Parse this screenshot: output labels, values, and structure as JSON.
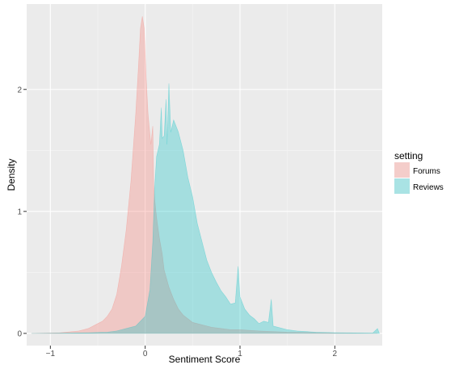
{
  "chart_data": {
    "type": "area",
    "xlabel": "Sentiment Score",
    "ylabel": "Density",
    "xlim": [
      -1.25,
      2.5
    ],
    "ylim": [
      -0.1,
      2.7
    ],
    "x_ticks": [
      -1,
      0,
      1,
      2
    ],
    "y_ticks": [
      0,
      1,
      2
    ],
    "grid": true,
    "legend": {
      "title": "setting",
      "position": "right"
    },
    "series": [
      {
        "name": "Forums",
        "color": "#F8766D",
        "fill_opacity": 0.3,
        "points": [
          [
            -1.2,
            0.0
          ],
          [
            -0.9,
            0.005
          ],
          [
            -0.7,
            0.02
          ],
          [
            -0.6,
            0.04
          ],
          [
            -0.5,
            0.08
          ],
          [
            -0.45,
            0.1
          ],
          [
            -0.4,
            0.14
          ],
          [
            -0.35,
            0.2
          ],
          [
            -0.3,
            0.32
          ],
          [
            -0.25,
            0.55
          ],
          [
            -0.2,
            0.85
          ],
          [
            -0.15,
            1.25
          ],
          [
            -0.1,
            1.8
          ],
          [
            -0.07,
            2.2
          ],
          [
            -0.05,
            2.5
          ],
          [
            -0.03,
            2.6
          ],
          [
            -0.01,
            2.5
          ],
          [
            0.01,
            2.1
          ],
          [
            0.03,
            1.8
          ],
          [
            0.06,
            1.55
          ],
          [
            0.08,
            1.7
          ],
          [
            0.09,
            1.22
          ],
          [
            0.1,
            1.1
          ],
          [
            0.12,
            0.95
          ],
          [
            0.15,
            0.78
          ],
          [
            0.18,
            0.65
          ],
          [
            0.2,
            0.52
          ],
          [
            0.25,
            0.38
          ],
          [
            0.3,
            0.28
          ],
          [
            0.35,
            0.2
          ],
          [
            0.4,
            0.15
          ],
          [
            0.45,
            0.12
          ],
          [
            0.5,
            0.09
          ],
          [
            0.6,
            0.07
          ],
          [
            0.7,
            0.05
          ],
          [
            0.8,
            0.04
          ],
          [
            0.9,
            0.03
          ],
          [
            1.0,
            0.03
          ],
          [
            1.2,
            0.02
          ],
          [
            1.5,
            0.01
          ],
          [
            2.0,
            0.003
          ],
          [
            2.45,
            0.0
          ]
        ]
      },
      {
        "name": "Reviews",
        "color": "#00BFC4",
        "fill_opacity": 0.3,
        "points": [
          [
            -1.2,
            0.0
          ],
          [
            -0.6,
            0.005
          ],
          [
            -0.4,
            0.01
          ],
          [
            -0.3,
            0.02
          ],
          [
            -0.2,
            0.04
          ],
          [
            -0.1,
            0.06
          ],
          [
            0.0,
            0.14
          ],
          [
            0.05,
            0.36
          ],
          [
            0.08,
            0.75
          ],
          [
            0.1,
            1.2
          ],
          [
            0.12,
            1.45
          ],
          [
            0.15,
            1.55
          ],
          [
            0.17,
            1.85
          ],
          [
            0.18,
            1.6
          ],
          [
            0.2,
            1.62
          ],
          [
            0.22,
            1.92
          ],
          [
            0.23,
            1.55
          ],
          [
            0.25,
            2.05
          ],
          [
            0.27,
            1.65
          ],
          [
            0.3,
            1.75
          ],
          [
            0.35,
            1.65
          ],
          [
            0.4,
            1.5
          ],
          [
            0.45,
            1.28
          ],
          [
            0.5,
            1.12
          ],
          [
            0.55,
            0.9
          ],
          [
            0.6,
            0.75
          ],
          [
            0.65,
            0.6
          ],
          [
            0.7,
            0.5
          ],
          [
            0.75,
            0.42
          ],
          [
            0.8,
            0.35
          ],
          [
            0.85,
            0.3
          ],
          [
            0.9,
            0.24
          ],
          [
            0.95,
            0.25
          ],
          [
            0.98,
            0.55
          ],
          [
            1.0,
            0.3
          ],
          [
            1.05,
            0.2
          ],
          [
            1.1,
            0.15
          ],
          [
            1.15,
            0.12
          ],
          [
            1.2,
            0.08
          ],
          [
            1.25,
            0.1
          ],
          [
            1.3,
            0.09
          ],
          [
            1.33,
            0.28
          ],
          [
            1.35,
            0.06
          ],
          [
            1.4,
            0.05
          ],
          [
            1.5,
            0.03
          ],
          [
            1.6,
            0.02
          ],
          [
            1.8,
            0.01
          ],
          [
            2.0,
            0.006
          ],
          [
            2.2,
            0.004
          ],
          [
            2.4,
            0.003
          ],
          [
            2.45,
            0.04
          ],
          [
            2.47,
            0.0
          ]
        ]
      }
    ]
  }
}
